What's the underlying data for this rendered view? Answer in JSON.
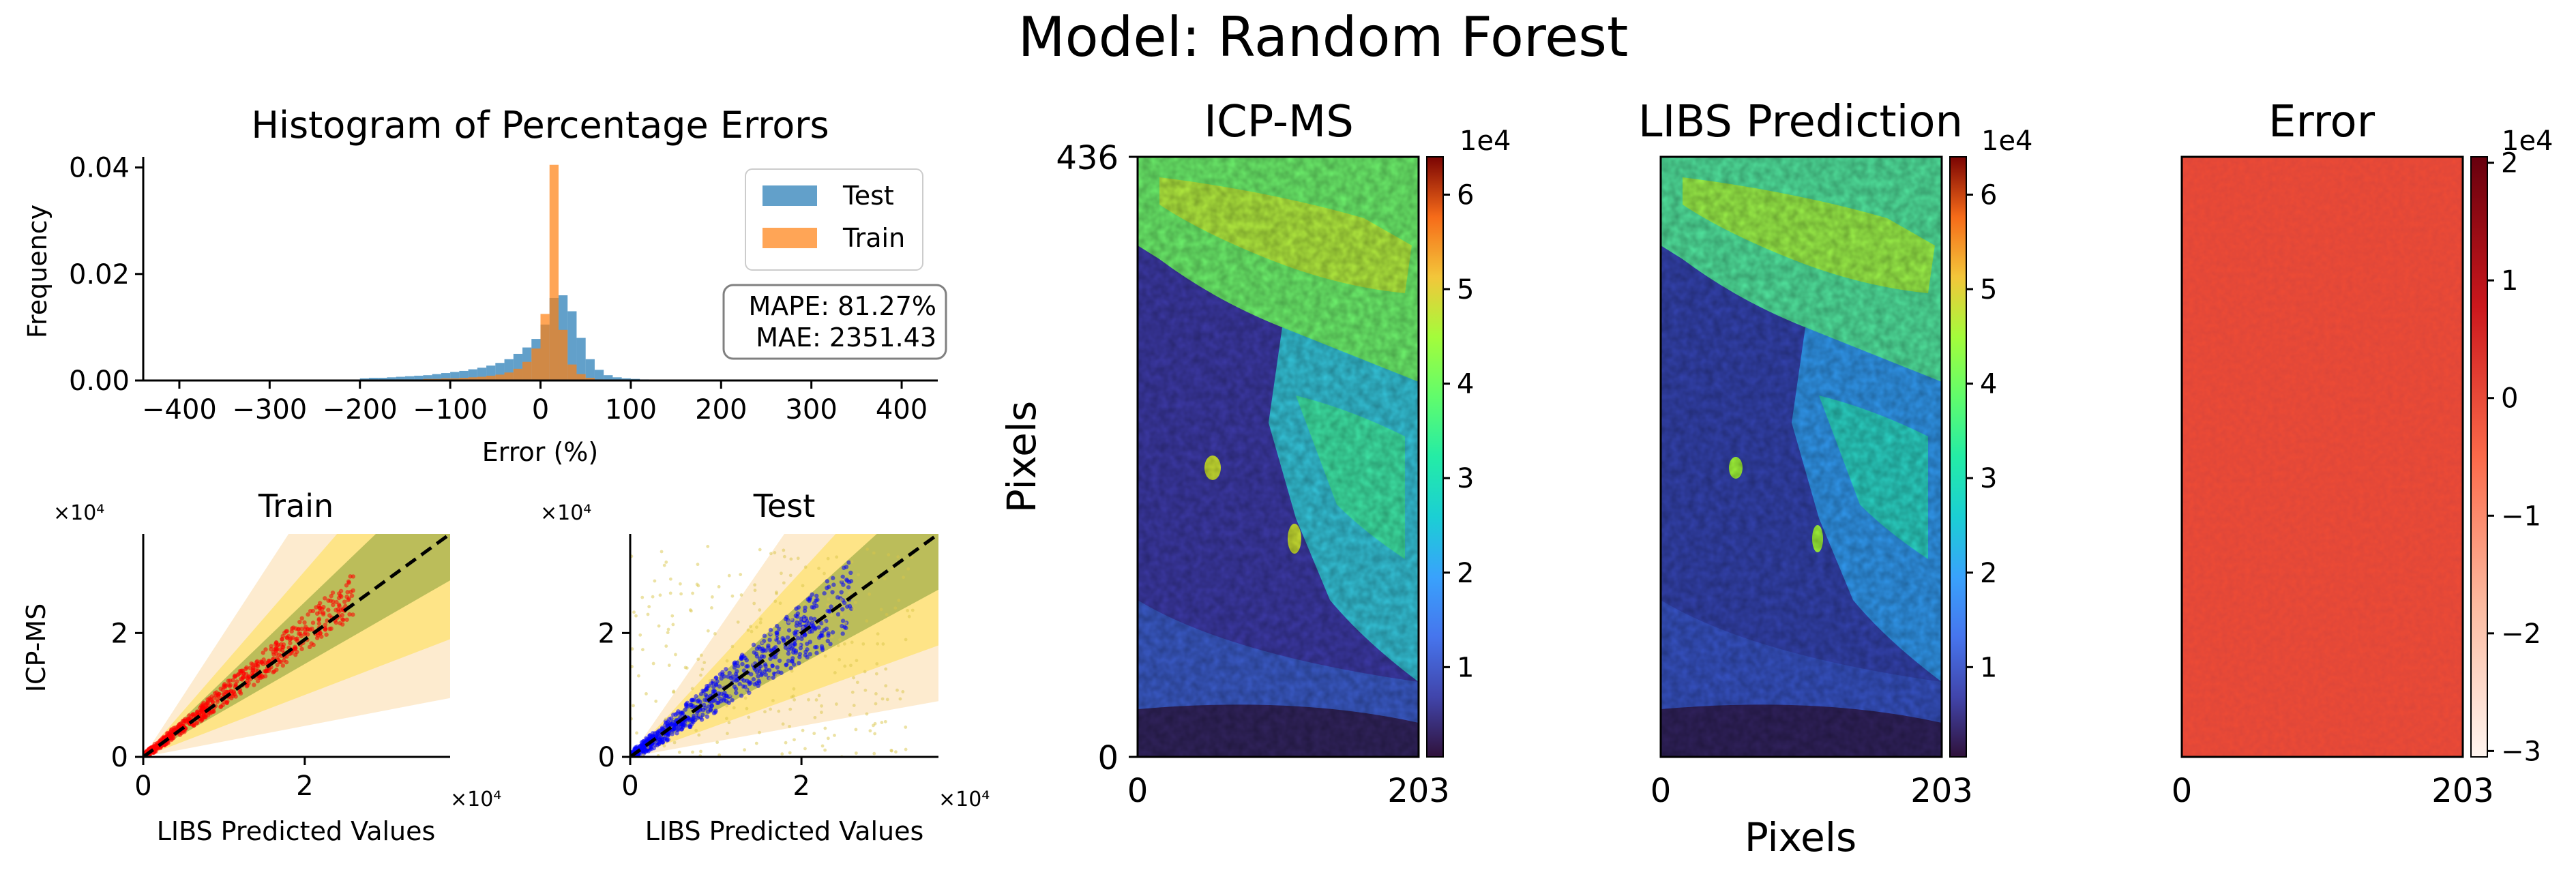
{
  "suptitle": "Model: Random Forest",
  "histogram": {
    "type": "bar",
    "title": "Histogram of Percentage Errors",
    "xlabel": "Error (%)",
    "ylabel": "Frequency",
    "xlim": [
      -440,
      440
    ],
    "ylim": [
      0,
      0.042
    ],
    "x_ticks": [
      "−400",
      "−300",
      "−200",
      "−100",
      "0",
      "100",
      "200",
      "300",
      "400"
    ],
    "x_tick_values": [
      -400,
      -300,
      -200,
      -100,
      0,
      100,
      200,
      300,
      400
    ],
    "y_ticks": [
      "0.00",
      "0.02",
      "0.04"
    ],
    "y_tick_values": [
      0,
      0.02,
      0.04
    ],
    "bin_edges_start": -200,
    "bin_width": 10,
    "series": [
      {
        "name": "Test",
        "color": "#1f77b4",
        "values": [
          0.0004,
          0.0005,
          0.0005,
          0.0006,
          0.0007,
          0.0008,
          0.0009,
          0.001,
          0.0012,
          0.0014,
          0.0016,
          0.0018,
          0.0021,
          0.0024,
          0.0028,
          0.0033,
          0.004,
          0.005,
          0.0062,
          0.0078,
          0.0105,
          0.0155,
          0.016,
          0.013,
          0.008,
          0.004,
          0.002,
          0.001,
          0.0006,
          0.0004,
          0.0003,
          0.0002,
          0.0001,
          0.0001,
          0.0001,
          0.0001,
          0.0001,
          0.0001,
          0.0001,
          0.0001
        ]
      },
      {
        "name": "Train",
        "color": "#ff7f0e",
        "values": [
          0.0001,
          0.0001,
          0.0001,
          0.0001,
          0.0002,
          0.0002,
          0.0002,
          0.0003,
          0.0003,
          0.0004,
          0.0004,
          0.0005,
          0.0006,
          0.0007,
          0.0009,
          0.0011,
          0.0015,
          0.0022,
          0.0035,
          0.006,
          0.0125,
          0.0405,
          0.0095,
          0.003,
          0.0012,
          0.0005,
          0.0002,
          0.0001,
          0.0001,
          0.0001,
          0.0001,
          0.0001,
          0.0001,
          0.0001,
          0.0001,
          0.0001,
          0.0001,
          0.0001,
          0.0001,
          0.0001
        ]
      }
    ],
    "stats_box": {
      "line1": "MAPE: 81.27%",
      "line2": "MAE: 2351.43"
    }
  },
  "scatter_train": {
    "type": "scatter",
    "title": "Train",
    "xlabel": "LIBS Predicted Values",
    "ylabel": "ICP-MS",
    "x_multiplier": "×10⁴",
    "y_multiplier": "×10⁴",
    "xlim": [
      0,
      3.8
    ],
    "ylim": [
      0,
      3.6
    ],
    "x_ticks": [
      "0",
      "2"
    ],
    "x_tick_values": [
      0,
      2
    ],
    "y_ticks": [
      "0",
      "2"
    ],
    "y_tick_values": [
      0,
      2
    ],
    "point_color": "#ff0000",
    "note": "values in units of 1e4",
    "point_cloud": {
      "x_max": 2.6,
      "spread": 0.12,
      "n": 700
    }
  },
  "scatter_test": {
    "type": "scatter",
    "title": "Test",
    "xlabel": "LIBS Predicted Values",
    "x_multiplier": "×10⁴",
    "y_multiplier": "×10⁴",
    "xlim": [
      0,
      3.6
    ],
    "ylim": [
      0,
      3.6
    ],
    "x_ticks": [
      "0",
      "2"
    ],
    "x_tick_values": [
      0,
      2
    ],
    "y_ticks": [
      "0",
      "2"
    ],
    "y_tick_values": [
      0,
      2
    ],
    "point_color": "#0000ff",
    "outlier_color": "#d9c64a",
    "point_cloud": {
      "x_max": 2.6,
      "spread": 0.2,
      "n": 700
    }
  },
  "maps": {
    "xlabel": "Pixels",
    "ylabel": "Pixels",
    "x_ticks": [
      "0",
      "203"
    ],
    "y_ticks": [
      "0",
      "436"
    ],
    "panels": [
      {
        "title": "ICP-MS",
        "colormap": "turbo",
        "cbar_exponent": "1e4",
        "cbar_ticks": [
          "1",
          "2",
          "3",
          "4",
          "5",
          "6"
        ],
        "cbar_range": [
          0.05,
          6.4
        ]
      },
      {
        "title": "LIBS Prediction",
        "colormap": "turbo",
        "cbar_exponent": "1e4",
        "cbar_ticks": [
          "1",
          "2",
          "3",
          "4",
          "5",
          "6"
        ],
        "cbar_range": [
          0.05,
          6.4
        ]
      },
      {
        "title": "Error",
        "colormap": "reds",
        "cbar_exponent": "1e4",
        "cbar_ticks": [
          "2",
          "1",
          "0",
          "−1",
          "−2",
          "−3"
        ],
        "cbar_range": [
          -3.05,
          2.05
        ]
      }
    ]
  }
}
